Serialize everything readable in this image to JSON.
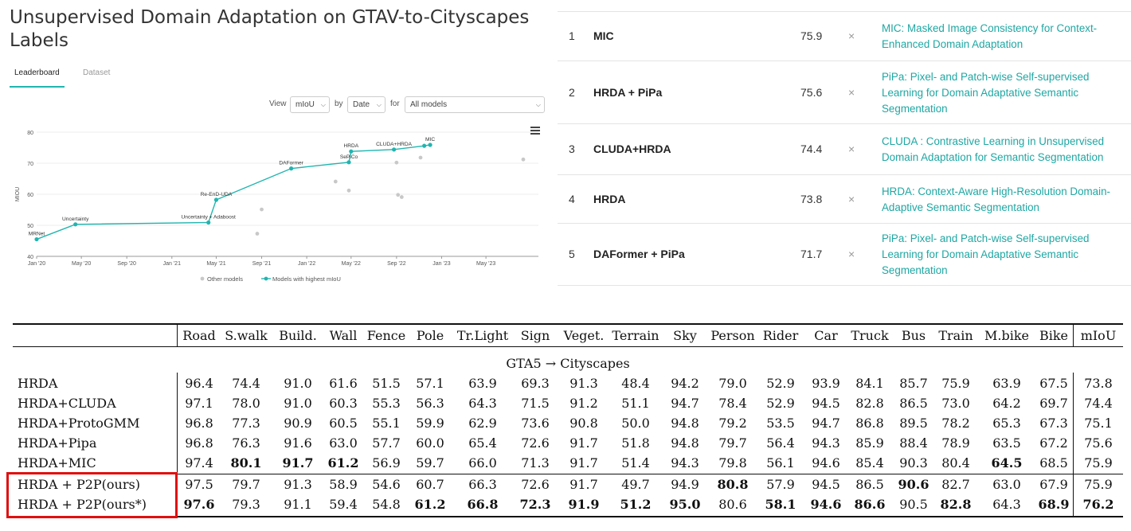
{
  "page": {
    "title": "Unsupervised Domain Adaptation on GTAV-to-Cityscapes Labels",
    "tabs": [
      "Leaderboard",
      "Dataset"
    ],
    "active_tab": "Leaderboard"
  },
  "filters": {
    "view_label": "View",
    "view_value": "mIoU",
    "by_label": "by",
    "by_value": "Date",
    "for_label": "for",
    "for_value": "All models"
  },
  "chart_data": {
    "type": "scatter",
    "title": "",
    "xlabel": "",
    "ylabel": "MIOU",
    "ylim": [
      40,
      80
    ],
    "y_ticks": [
      40,
      50,
      60,
      70,
      80
    ],
    "x_tick_labels": [
      "Jan '20",
      "May '20",
      "Sep '20",
      "Jan '21",
      "May '21",
      "Sep '21",
      "Jan '22",
      "May '22",
      "Sep '22",
      "Jan '23",
      "May '23"
    ],
    "grid": true,
    "legend": {
      "placement": "bottom",
      "entries": [
        "Other models",
        "Models with highest mIoU"
      ]
    },
    "colors": {
      "best": "#21b5b0",
      "other": "#c8c8c8"
    },
    "series": [
      {
        "name": "Models with highest mIoU",
        "points": [
          {
            "x": "2020-01-01",
            "y": 45.5,
            "label": "MRNet"
          },
          {
            "x": "2020-04-15",
            "y": 50.3,
            "label": "Uncertainty"
          },
          {
            "x": "2021-04-10",
            "y": 50.9,
            "label": "Uncertainty + Adaboost"
          },
          {
            "x": "2021-05-01",
            "y": 58.2,
            "label": "Re-EnD-UDA"
          },
          {
            "x": "2021-11-20",
            "y": 68.3,
            "label": "DAFormer"
          },
          {
            "x": "2022-04-25",
            "y": 70.3,
            "label": "SePiCo"
          },
          {
            "x": "2022-05-01",
            "y": 73.8,
            "label": "HRDA"
          },
          {
            "x": "2022-08-25",
            "y": 74.4,
            "label": "CLUDA+HRDA"
          },
          {
            "x": "2022-11-15",
            "y": 75.6,
            "label": ""
          },
          {
            "x": "2022-12-01",
            "y": 75.9,
            "label": "MIC"
          }
        ]
      },
      {
        "name": "Other models",
        "points": [
          {
            "x": "2021-08-20",
            "y": 47.3
          },
          {
            "x": "2021-09-01",
            "y": 55.1
          },
          {
            "x": "2022-03-20",
            "y": 64.1
          },
          {
            "x": "2022-04-25",
            "y": 61.2
          },
          {
            "x": "2022-09-01",
            "y": 70.2
          },
          {
            "x": "2022-09-05",
            "y": 59.8
          },
          {
            "x": "2022-09-15",
            "y": 59.1
          },
          {
            "x": "2022-11-05",
            "y": 71.8
          },
          {
            "x": "2023-08-10",
            "y": 71.2
          }
        ]
      }
    ]
  },
  "leaderboard": [
    {
      "rank": "1",
      "model": "MIC",
      "score": "75.9",
      "paper": "MIC: Masked Image Consistency for Context-Enhanced Domain Adaptation"
    },
    {
      "rank": "2",
      "model": "HRDA + PiPa",
      "score": "75.6",
      "paper": "PiPa: Pixel- and Patch-wise Self-supervised Learning for Domain Adaptative Semantic Segmentation"
    },
    {
      "rank": "3",
      "model": "CLUDA+HRDA",
      "score": "74.4",
      "paper": "CLUDA : Contrastive Learning in Unsupervised Domain Adaptation for Semantic Segmentation"
    },
    {
      "rank": "4",
      "model": "HRDA",
      "score": "73.8",
      "paper": "HRDA: Context-Aware High-Resolution Domain-Adaptive Semantic Segmentation"
    },
    {
      "rank": "5",
      "model": "DAFormer + PiPa",
      "score": "71.7",
      "paper": "PiPa: Pixel- and Patch-wise Self-supervised Learning for Domain Adaptative Semantic Segmentation"
    }
  ],
  "remove_glyph": "×",
  "table": {
    "columns": [
      "Road",
      "S.walk",
      "Build.",
      "Wall",
      "Fence",
      "Pole",
      "Tr.Light",
      "Sign",
      "Veget.",
      "Terrain",
      "Sky",
      "Person",
      "Rider",
      "Car",
      "Truck",
      "Bus",
      "Train",
      "M.bike",
      "Bike",
      "mIoU"
    ],
    "section": "GTA5 → Cityscapes",
    "rows": [
      {
        "name": "HRDA",
        "values": [
          "96.4",
          "74.4",
          "91.0",
          "61.6",
          "51.5",
          "57.1",
          "63.9",
          "69.3",
          "91.3",
          "48.4",
          "94.2",
          "79.0",
          "52.9",
          "93.9",
          "84.1",
          "85.7",
          "75.9",
          "63.9",
          "67.5",
          "73.8"
        ],
        "bold": []
      },
      {
        "name": "HRDA+CLUDA",
        "values": [
          "97.1",
          "78.0",
          "91.0",
          "60.3",
          "55.3",
          "56.3",
          "64.3",
          "71.5",
          "91.2",
          "51.1",
          "94.7",
          "78.4",
          "52.9",
          "94.5",
          "82.8",
          "86.5",
          "73.0",
          "64.2",
          "69.7",
          "74.4"
        ],
        "bold": []
      },
      {
        "name": "HRDA+ProtoGMM",
        "values": [
          "96.8",
          "77.3",
          "90.9",
          "60.5",
          "55.1",
          "59.9",
          "62.9",
          "73.6",
          "90.8",
          "50.0",
          "94.8",
          "79.2",
          "53.5",
          "94.7",
          "86.8",
          "89.5",
          "78.2",
          "65.3",
          "67.3",
          "75.1"
        ],
        "bold": []
      },
      {
        "name": "HRDA+Pipa",
        "values": [
          "96.8",
          "76.3",
          "91.6",
          "63.0",
          "57.7",
          "60.0",
          "65.4",
          "72.6",
          "91.7",
          "51.8",
          "94.8",
          "79.7",
          "56.4",
          "94.3",
          "85.9",
          "88.4",
          "78.9",
          "63.5",
          "67.2",
          "75.6"
        ],
        "bold": []
      },
      {
        "name": "HRDA+MIC",
        "values": [
          "97.4",
          "80.1",
          "91.7",
          "61.2",
          "56.9",
          "59.7",
          "66.0",
          "71.3",
          "91.7",
          "51.4",
          "94.3",
          "79.8",
          "56.1",
          "94.6",
          "85.4",
          "90.3",
          "80.4",
          "64.5",
          "68.5",
          "75.9"
        ],
        "bold": [
          1,
          2,
          3,
          17
        ]
      },
      {
        "name": "HRDA + P2P(ours)",
        "values": [
          "97.5",
          "79.7",
          "91.3",
          "58.9",
          "54.6",
          "60.7",
          "66.3",
          "72.6",
          "91.7",
          "49.7",
          "94.9",
          "80.8",
          "57.9",
          "94.5",
          "86.5",
          "90.6",
          "82.7",
          "63.0",
          "67.9",
          "75.9"
        ],
        "bold": [
          11,
          15
        ]
      },
      {
        "name": "HRDA + P2P(ours*)",
        "values": [
          "97.6",
          "79.3",
          "91.1",
          "59.4",
          "54.8",
          "61.2",
          "66.8",
          "72.3",
          "91.9",
          "51.2",
          "95.0",
          "80.6",
          "58.1",
          "94.6",
          "86.6",
          "90.5",
          "82.8",
          "64.3",
          "68.9",
          "76.2"
        ],
        "bold": [
          0,
          5,
          6,
          7,
          8,
          9,
          10,
          12,
          13,
          14,
          16,
          18,
          19
        ]
      }
    ]
  }
}
